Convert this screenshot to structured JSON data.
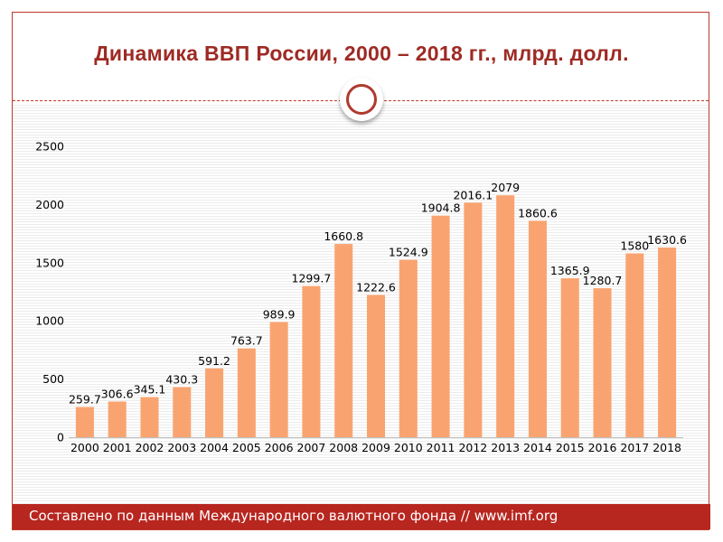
{
  "title": "Динамика ВВП России, 2000 – 2018 гг., млрд. долл.",
  "footer": "Составлено по данным Международного валютного фонда // www.imf.org",
  "colors": {
    "bar": "#f9a470",
    "title": "#9e2a24",
    "footer_bg": "#b7261f",
    "frame": "#c0392b"
  },
  "chart_data": {
    "type": "bar",
    "categories": [
      "2000",
      "2001",
      "2002",
      "2003",
      "2004",
      "2005",
      "2006",
      "2007",
      "2008",
      "2009",
      "2010",
      "2011",
      "2012",
      "2013",
      "2014",
      "2015",
      "2016",
      "2017",
      "2018"
    ],
    "values": [
      259.7,
      306.6,
      345.1,
      430.3,
      591.2,
      763.7,
      989.9,
      1299.7,
      1660.8,
      1222.6,
      1524.9,
      1904.8,
      2016.1,
      2079,
      1860.6,
      1365.9,
      1280.7,
      1580,
      1630.6
    ],
    "labels": [
      "259.7",
      "306.6",
      "345.1",
      "430.3",
      "591.2",
      "763.7",
      "989.9",
      "1299.7",
      "1660.8",
      "1222.6",
      "1524.9",
      "1904.8",
      "2016.1",
      "2079",
      "1860.6",
      "1365.9",
      "1280.7",
      "1580",
      "1630.6"
    ],
    "yticks": [
      "0",
      "500",
      "1000",
      "1500",
      "2000",
      "2500"
    ],
    "ylim": [
      0,
      2500
    ],
    "grid": false,
    "legend": "none"
  }
}
